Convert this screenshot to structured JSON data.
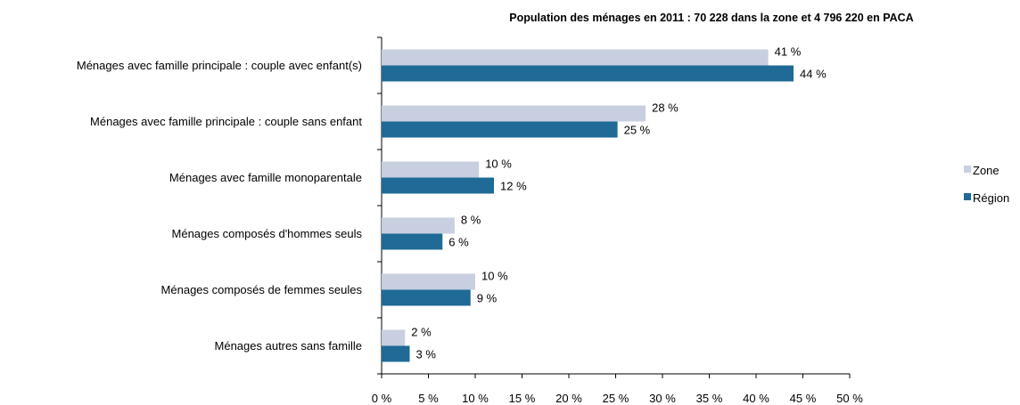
{
  "chart_data": {
    "type": "bar",
    "orientation": "horizontal",
    "title": "Population des ménages en 2011 : 70 228 dans la zone et 4 796 220 en PACA",
    "categories": [
      "Ménages avec famille principale : couple avec enfant(s)",
      "Ménages avec famille principale : couple sans enfant",
      "Ménages avec famille monoparentale",
      "Ménages composés d'hommes seuls",
      "Ménages composés de femmes seules",
      "Ménages autres sans famille"
    ],
    "series": [
      {
        "name": "Zone",
        "color": "#c8cfe0",
        "values": [
          41.3,
          28.2,
          10.4,
          7.8,
          10.0,
          2.5
        ],
        "labels": [
          "41 %",
          "28 %",
          "10 %",
          "8 %",
          "10 %",
          "2 %"
        ]
      },
      {
        "name": "Région",
        "color": "#1f6a96",
        "values": [
          44.0,
          25.2,
          12.0,
          6.5,
          9.5,
          3.0
        ],
        "labels": [
          "44 %",
          "25 %",
          "12 %",
          "6 %",
          "9 %",
          "3 %"
        ]
      }
    ],
    "xlim": [
      0,
      50
    ],
    "xticks": [
      0,
      5,
      10,
      15,
      20,
      25,
      30,
      35,
      40,
      45,
      50
    ],
    "xtick_labels": [
      "0 %",
      "5 %",
      "10 %",
      "15 %",
      "20 %",
      "25 %",
      "30 %",
      "35 %",
      "40 %",
      "45 %",
      "50 %"
    ],
    "grid": false,
    "legend_position": "right"
  }
}
